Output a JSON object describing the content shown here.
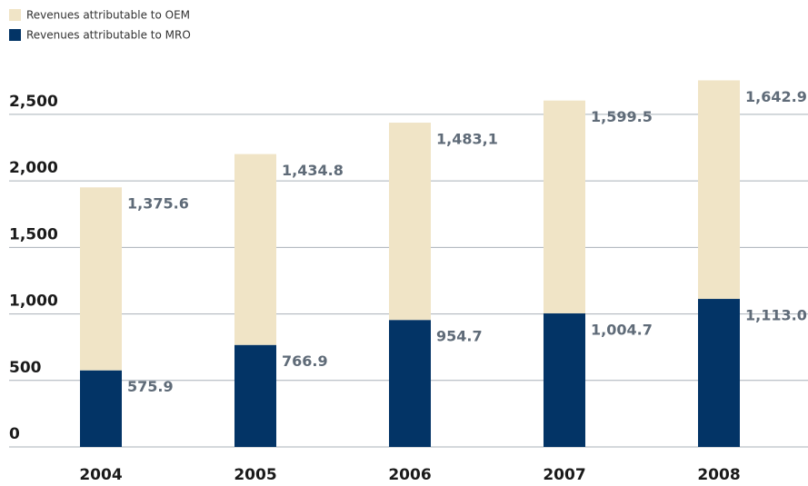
{
  "chart_data": {
    "type": "stacked_bar",
    "categories": [
      "2004",
      "2005",
      "2006",
      "2007",
      "2008"
    ],
    "series": [
      {
        "name": "Revenues attributable to MRO",
        "color": "#033466",
        "values": [
          575.9,
          766.9,
          954.7,
          1004.7,
          1113.0
        ],
        "value_labels": [
          "575.9",
          "766.9",
          "954.7",
          "1,004.7",
          "1,113.0"
        ]
      },
      {
        "name": "Revenues attributable to OEM",
        "color": "#f0e4c6",
        "values": [
          1375.6,
          1434.8,
          1483.1,
          1599.5,
          1642.9
        ],
        "value_labels": [
          "1,375.6",
          "1,434.8",
          "1,483,1",
          "1,599.5",
          "1,642.9"
        ]
      }
    ],
    "legend_order": [
      1,
      0
    ],
    "ylim": [
      0,
      2800
    ],
    "yticks": [
      0,
      500,
      {
        "value": 1000,
        "label": "1,000"
      },
      {
        "value": 1500,
        "label": "1,500"
      },
      {
        "value": 2000,
        "label": "2,000"
      },
      {
        "value": 2500,
        "label": "2,500"
      }
    ],
    "grid": true
  }
}
